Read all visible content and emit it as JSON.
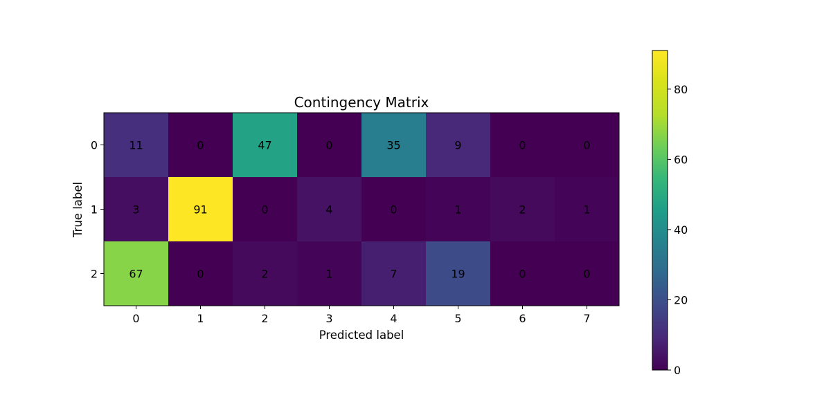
{
  "chart_data": {
    "type": "heatmap",
    "title": "Contingency Matrix",
    "xlabel": "Predicted label",
    "ylabel": "True label",
    "x_categories": [
      "0",
      "1",
      "2",
      "3",
      "4",
      "5",
      "6",
      "7"
    ],
    "y_categories": [
      "0",
      "1",
      "2"
    ],
    "values": [
      [
        11,
        0,
        47,
        0,
        35,
        9,
        0,
        0
      ],
      [
        3,
        91,
        0,
        4,
        0,
        1,
        2,
        1
      ],
      [
        67,
        0,
        2,
        1,
        7,
        19,
        0,
        0
      ]
    ],
    "colormap": "viridis",
    "vmin": 0,
    "vmax": 91,
    "colorbar_ticks": [
      0,
      20,
      40,
      60,
      80
    ],
    "text_colors": {
      "on_dark": "#ffff00",
      "on_light": "#000000"
    }
  }
}
